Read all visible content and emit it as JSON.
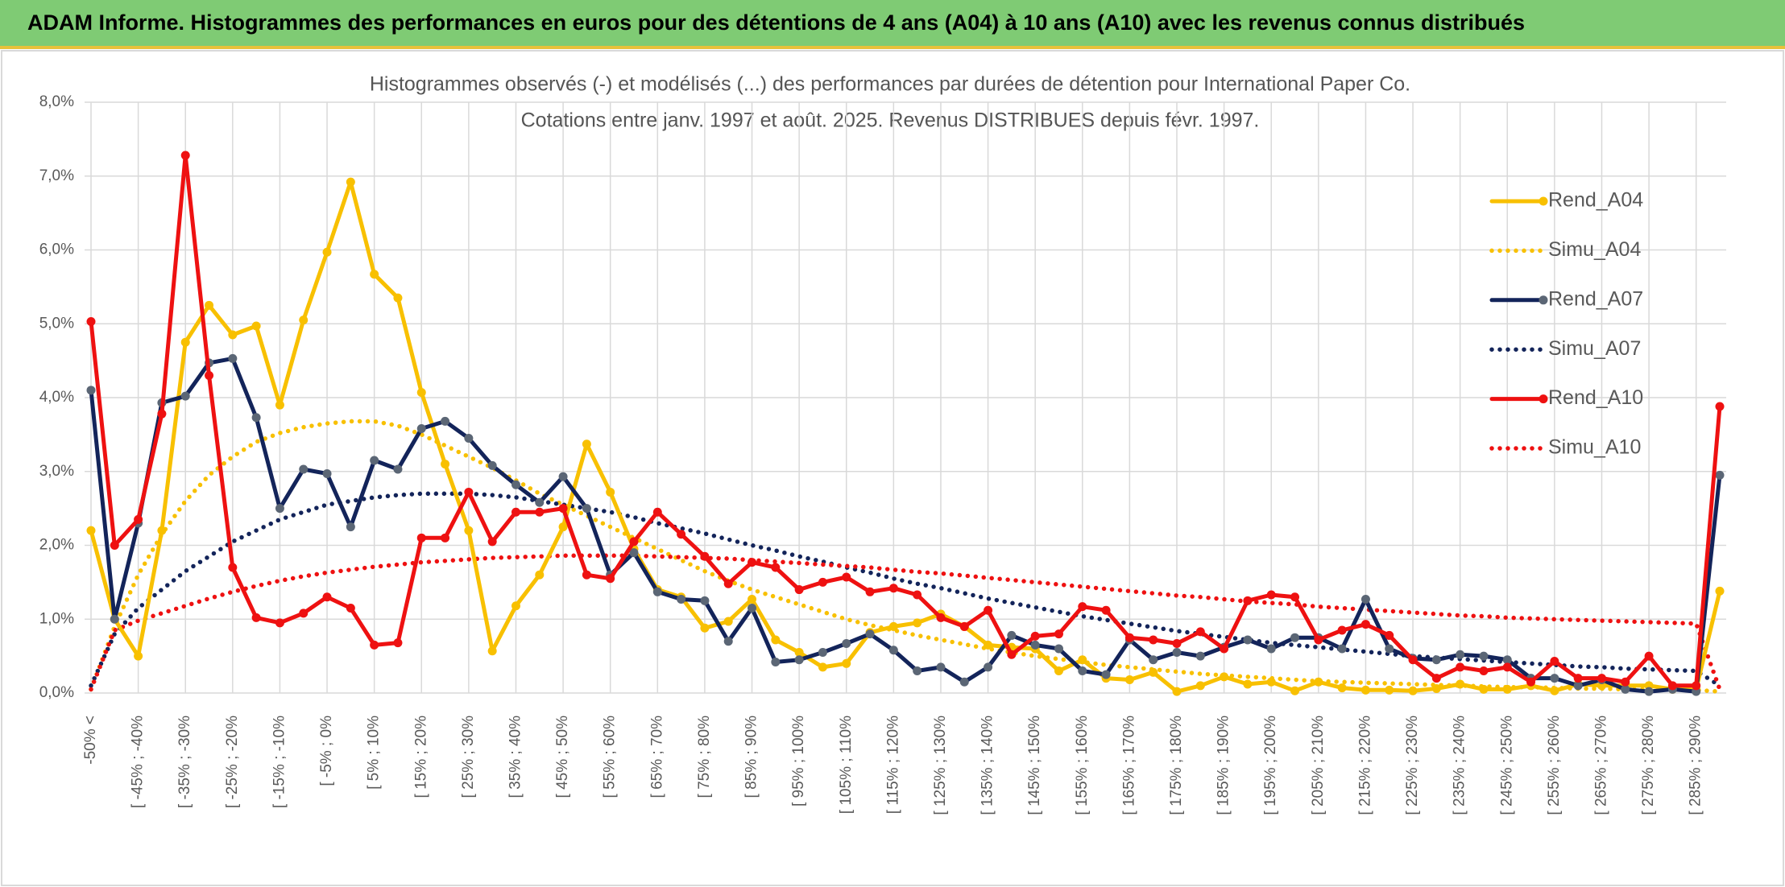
{
  "header": {
    "title": "ADAM Informe. Histogrammes des performances en euros pour des détentions de 4 ans (A04) à 10 ans (A10) avec les revenus connus distribués"
  },
  "chart_data": {
    "type": "line",
    "title": "Histogrammes observés (-) et modélisés (...) des performances par durées de détention pour International Paper Co.",
    "subtitle": "Cotations entre janv. 1997 et août. 2025. Revenus DISTRIBUES depuis févr. 1997.",
    "categories": [
      "-50% <",
      null,
      "[ -45% ; -40%",
      null,
      "[ -35% ; -30%",
      null,
      "[ -25% ; -20%",
      null,
      "[ -15% ; -10%",
      null,
      "[ -5% ; 0%",
      null,
      "[ 5% ; 10%",
      null,
      "[ 15% ; 20%",
      null,
      "[ 25% ; 30%",
      null,
      "[ 35% ; 40%",
      null,
      "[ 45% ; 50%",
      null,
      "[ 55% ; 60%",
      null,
      "[ 65% ; 70%",
      null,
      "[ 75% ; 80%",
      null,
      "[ 85% ; 90%",
      null,
      "[ 95% ; 100%",
      null,
      "[ 105% ; 110%",
      null,
      "[ 115% ; 120%",
      null,
      "[ 125% ; 130%",
      null,
      "[ 135% ; 140%",
      null,
      "[ 145% ; 150%",
      null,
      "[ 155% ; 160%",
      null,
      "[ 165% ; 170%",
      null,
      "[ 175% ; 180%",
      null,
      "[ 185% ; 190%",
      null,
      "[ 195% ; 200%",
      null,
      "[ 205% ; 210%",
      null,
      "[ 215% ; 220%",
      null,
      "[ 225% ; 230%",
      null,
      "[ 235% ; 240%",
      null,
      "[ 245% ; 250%",
      null,
      "[ 255% ; 260%",
      null,
      "[ 265% ; 270%",
      null,
      "[ 275% ; 280%",
      null,
      "[ 285% ; 290%",
      null
    ],
    "ylim": [
      0,
      8
    ],
    "yticks": [
      {
        "value": 0,
        "label": "0,0%"
      },
      {
        "value": 1,
        "label": "1,0%"
      },
      {
        "value": 2,
        "label": "2,0%"
      },
      {
        "value": 3,
        "label": "3,0%"
      },
      {
        "value": 4,
        "label": "4,0%"
      },
      {
        "value": 5,
        "label": "5,0%"
      },
      {
        "value": 6,
        "label": "6,0%"
      },
      {
        "value": 7,
        "label": "7,0%"
      },
      {
        "value": 8,
        "label": "8,0%"
      }
    ],
    "grid": true,
    "legend": "right",
    "series": [
      {
        "name": "Rend_A04",
        "color": "#f8c000",
        "marker_color": "#f8c000",
        "line_style": "solid",
        "values": [
          2.2,
          1.0,
          0.5,
          2.2,
          4.75,
          5.25,
          4.85,
          4.97,
          3.9,
          5.05,
          5.97,
          6.92,
          5.67,
          5.35,
          4.07,
          3.1,
          2.2,
          0.57,
          1.18,
          1.6,
          2.25,
          3.37,
          2.72,
          1.95,
          1.4,
          1.3,
          0.88,
          0.97,
          1.27,
          0.72,
          0.55,
          0.35,
          0.4,
          0.82,
          0.9,
          0.95,
          1.07,
          0.9,
          0.65,
          0.62,
          0.6,
          0.3,
          0.45,
          0.2,
          0.18,
          0.28,
          0.02,
          0.1,
          0.22,
          0.12,
          0.15,
          0.03,
          0.15,
          0.07,
          0.04,
          0.04,
          0.03,
          0.06,
          0.12,
          0.05,
          0.05,
          0.1,
          0.03,
          0.12,
          0.1,
          0.1,
          0.1,
          0.05,
          0.05,
          1.38
        ]
      },
      {
        "name": "Simu_A04",
        "color": "#f8c000",
        "line_style": "dotted",
        "values": [
          0.05,
          0.9,
          1.6,
          2.15,
          2.6,
          2.95,
          3.2,
          3.4,
          3.52,
          3.6,
          3.65,
          3.68,
          3.68,
          3.62,
          3.5,
          3.35,
          3.2,
          3.05,
          2.88,
          2.7,
          2.55,
          2.4,
          2.25,
          2.1,
          1.95,
          1.8,
          1.65,
          1.52,
          1.4,
          1.3,
          1.2,
          1.1,
          1.0,
          0.92,
          0.85,
          0.78,
          0.72,
          0.66,
          0.6,
          0.55,
          0.5,
          0.46,
          0.42,
          0.38,
          0.35,
          0.32,
          0.29,
          0.26,
          0.24,
          0.22,
          0.2,
          0.18,
          0.16,
          0.15,
          0.14,
          0.13,
          0.12,
          0.11,
          0.1,
          0.09,
          0.08,
          0.08,
          0.07,
          0.06,
          0.06,
          0.05,
          0.05,
          0.05,
          0.04,
          0.02
        ]
      },
      {
        "name": "Rend_A07",
        "color": "#13245a",
        "marker_color": "#5b6675",
        "line_style": "solid",
        "values": [
          4.1,
          1.0,
          2.3,
          3.93,
          4.02,
          4.47,
          4.53,
          3.73,
          2.5,
          3.03,
          2.97,
          2.25,
          3.15,
          3.03,
          3.58,
          3.68,
          3.45,
          3.08,
          2.82,
          2.58,
          2.93,
          2.5,
          1.6,
          1.9,
          1.37,
          1.27,
          1.25,
          0.7,
          1.15,
          0.42,
          0.45,
          0.55,
          0.67,
          0.8,
          0.58,
          0.3,
          0.35,
          0.15,
          0.35,
          0.78,
          0.65,
          0.6,
          0.3,
          0.25,
          0.72,
          0.45,
          0.55,
          0.5,
          0.62,
          0.72,
          0.6,
          0.75,
          0.75,
          0.6,
          1.27,
          0.6,
          0.47,
          0.45,
          0.52,
          0.5,
          0.45,
          0.2,
          0.2,
          0.1,
          0.18,
          0.05,
          0.02,
          0.05,
          0.02,
          2.95
        ]
      },
      {
        "name": "Simu_A07",
        "color": "#13245a",
        "line_style": "dotted",
        "values": [
          0.1,
          0.8,
          1.15,
          1.4,
          1.65,
          1.85,
          2.05,
          2.2,
          2.35,
          2.45,
          2.55,
          2.6,
          2.65,
          2.68,
          2.7,
          2.7,
          2.7,
          2.68,
          2.65,
          2.6,
          2.55,
          2.5,
          2.45,
          2.38,
          2.3,
          2.23,
          2.16,
          2.08,
          2.0,
          1.93,
          1.85,
          1.78,
          1.7,
          1.63,
          1.55,
          1.48,
          1.42,
          1.35,
          1.28,
          1.22,
          1.16,
          1.1,
          1.04,
          0.99,
          0.94,
          0.89,
          0.84,
          0.8,
          0.76,
          0.72,
          0.68,
          0.65,
          0.62,
          0.59,
          0.56,
          0.53,
          0.5,
          0.48,
          0.46,
          0.44,
          0.42,
          0.4,
          0.38,
          0.36,
          0.35,
          0.33,
          0.32,
          0.31,
          0.3,
          0.1
        ]
      },
      {
        "name": "Rend_A10",
        "color": "#ee1111",
        "marker_color": "#ee1111",
        "line_style": "solid",
        "values": [
          5.03,
          2.0,
          2.35,
          3.78,
          7.28,
          4.3,
          1.7,
          1.02,
          0.95,
          1.08,
          1.3,
          1.15,
          0.65,
          0.68,
          2.1,
          2.1,
          2.72,
          2.05,
          2.45,
          2.45,
          2.5,
          1.6,
          1.55,
          2.05,
          2.45,
          2.15,
          1.85,
          1.48,
          1.77,
          1.7,
          1.4,
          1.5,
          1.57,
          1.37,
          1.42,
          1.33,
          1.02,
          0.9,
          1.12,
          0.52,
          0.77,
          0.8,
          1.17,
          1.12,
          0.75,
          0.72,
          0.67,
          0.83,
          0.6,
          1.25,
          1.33,
          1.3,
          0.72,
          0.85,
          0.93,
          0.78,
          0.45,
          0.2,
          0.35,
          0.3,
          0.35,
          0.15,
          0.43,
          0.2,
          0.2,
          0.15,
          0.5,
          0.1,
          0.1,
          3.88
        ]
      },
      {
        "name": "Simu_A10",
        "color": "#ee1111",
        "line_style": "dotted",
        "values": [
          0.05,
          0.85,
          0.98,
          1.08,
          1.18,
          1.28,
          1.37,
          1.45,
          1.52,
          1.58,
          1.63,
          1.67,
          1.71,
          1.74,
          1.77,
          1.79,
          1.81,
          1.83,
          1.84,
          1.85,
          1.86,
          1.86,
          1.86,
          1.86,
          1.85,
          1.84,
          1.83,
          1.82,
          1.8,
          1.78,
          1.76,
          1.74,
          1.72,
          1.7,
          1.67,
          1.64,
          1.62,
          1.59,
          1.56,
          1.53,
          1.5,
          1.47,
          1.44,
          1.41,
          1.38,
          1.35,
          1.32,
          1.3,
          1.27,
          1.24,
          1.22,
          1.2,
          1.17,
          1.15,
          1.13,
          1.11,
          1.09,
          1.07,
          1.05,
          1.04,
          1.02,
          1.01,
          1.0,
          0.99,
          0.98,
          0.97,
          0.96,
          0.95,
          0.94,
          0.05
        ]
      }
    ]
  }
}
